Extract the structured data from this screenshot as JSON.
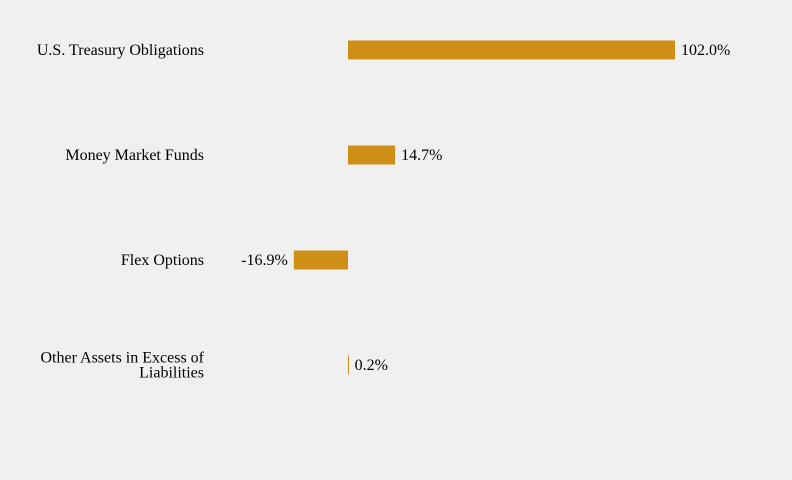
{
  "chart_data": {
    "type": "bar",
    "orientation": "horizontal",
    "title": "",
    "xlabel": "",
    "ylabel": "",
    "categories": [
      [
        "U.S. Treasury Obligations"
      ],
      [
        "Money Market Funds"
      ],
      [
        "Flex Options"
      ],
      [
        "Other Assets in Excess of",
        "Liabilities"
      ]
    ],
    "values": [
      102.0,
      14.7,
      -16.9,
      0.2
    ],
    "value_labels": [
      "102.0%",
      "14.7%",
      "-16.9%",
      "0.2%"
    ],
    "xlim": [
      -40,
      130
    ],
    "grid": false,
    "legend": "none",
    "bar_color": "#cf8f17",
    "background_color": "#f0f0f0"
  }
}
